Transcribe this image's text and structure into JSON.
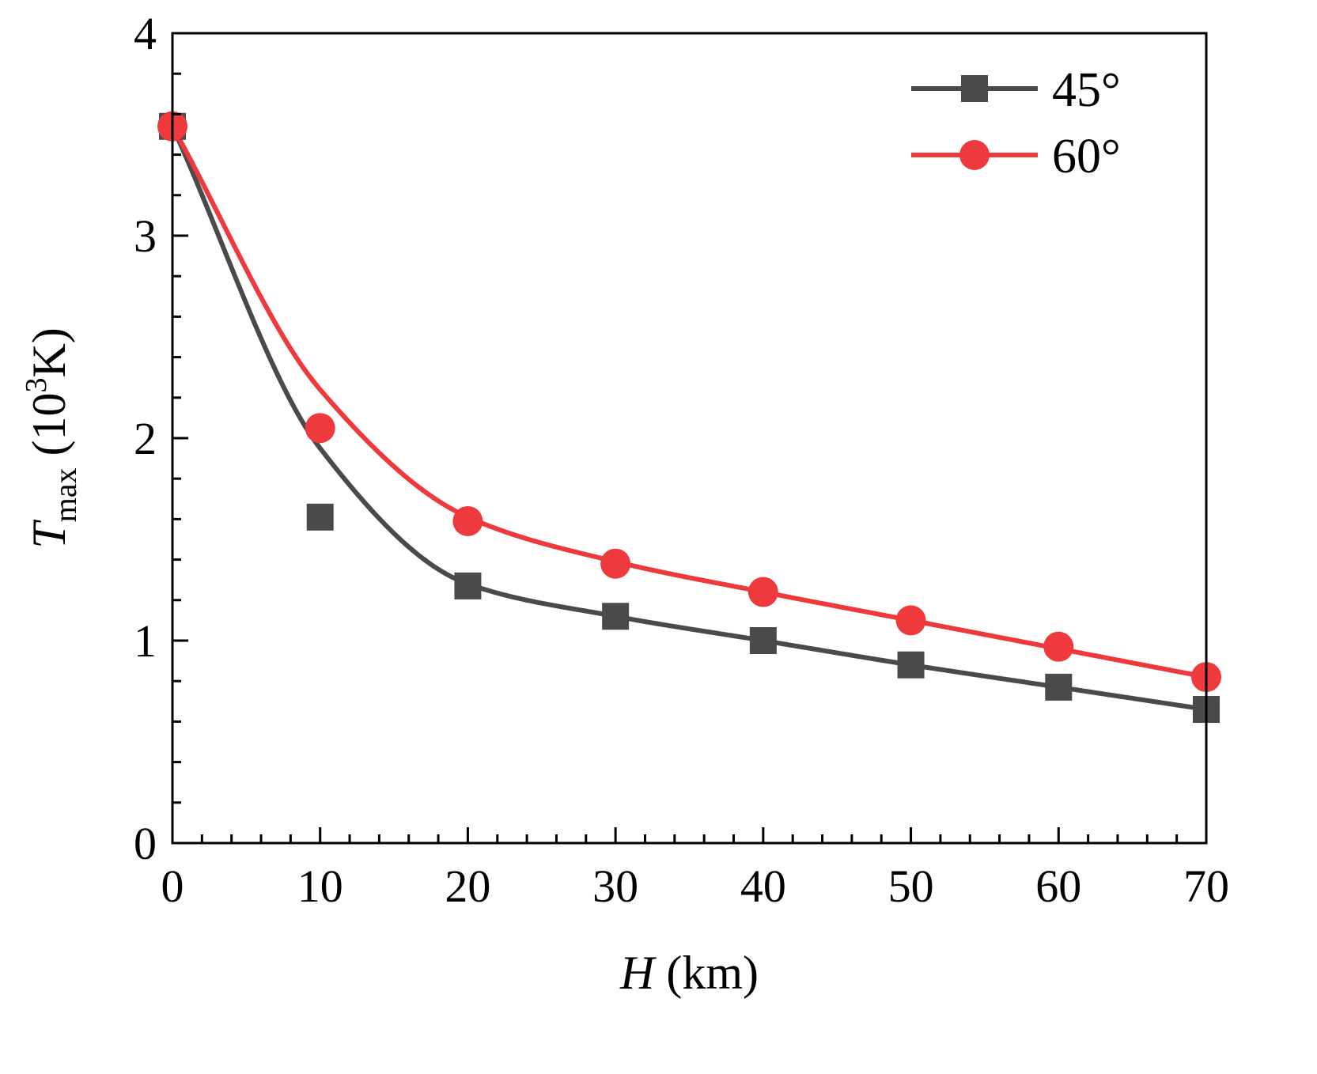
{
  "chart_data": {
    "type": "line",
    "xlabel": {
      "italic": "H",
      "rest": " (km)"
    },
    "ylabel": {
      "italic": "T",
      "sub": "max",
      "unit_open": " (10",
      "sup": "3",
      "unit_close": "K)"
    },
    "xlim": [
      0,
      70
    ],
    "ylim": [
      0,
      4
    ],
    "xticks": [
      0,
      10,
      20,
      30,
      40,
      50,
      60,
      70
    ],
    "yticks": [
      0,
      1,
      2,
      3,
      4
    ],
    "legend_position": "top-right",
    "series": [
      {
        "name": "45°",
        "marker": "square",
        "color": "#4a4a4a",
        "x": [
          0,
          10,
          20,
          30,
          40,
          50,
          60,
          70
        ],
        "y": [
          3.54,
          1.61,
          1.27,
          1.12,
          1.0,
          0.88,
          0.77,
          0.66
        ],
        "fit_y": [
          3.54,
          1.95,
          1.28,
          1.12,
          1.0,
          0.88,
          0.77,
          0.66
        ]
      },
      {
        "name": "60°",
        "marker": "circle",
        "color": "#ee3a3c",
        "x": [
          0,
          10,
          20,
          30,
          40,
          50,
          60,
          70
        ],
        "y": [
          3.54,
          2.05,
          1.59,
          1.38,
          1.24,
          1.1,
          0.97,
          0.82
        ],
        "fit_y": [
          3.54,
          2.24,
          1.61,
          1.39,
          1.24,
          1.1,
          0.96,
          0.82
        ]
      }
    ]
  }
}
